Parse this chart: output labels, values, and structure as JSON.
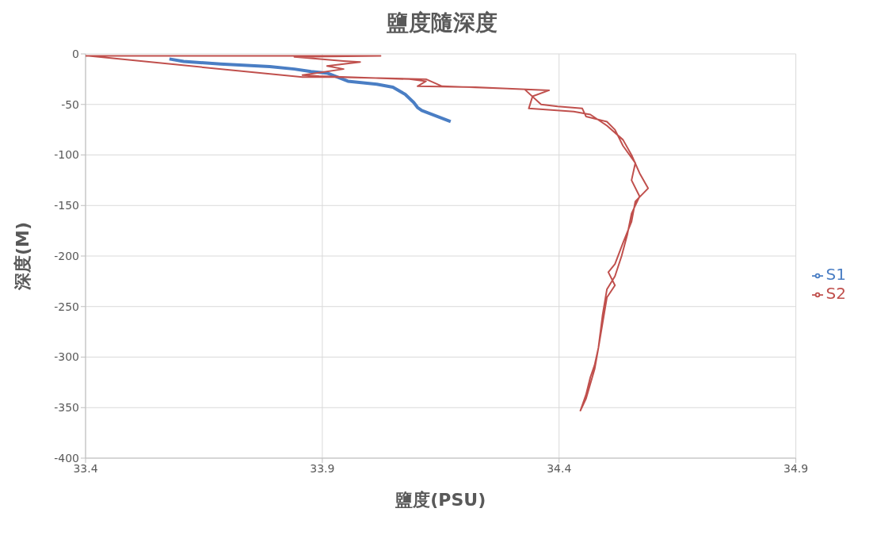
{
  "chart_data": {
    "type": "line",
    "title": "鹽度隨深度",
    "xlabel": "鹽度(PSU)",
    "ylabel": "深度(M)",
    "xlim": [
      33.4,
      34.9
    ],
    "xticks": [
      33.4,
      33.9,
      34.4,
      34.9
    ],
    "ylim": [
      -400,
      0
    ],
    "yticks": [
      -400,
      -350,
      -300,
      -250,
      -200,
      -150,
      -100,
      -50,
      0
    ],
    "grid": true,
    "legend": "right",
    "marker": "none",
    "line_style": "solid",
    "series": [
      {
        "name": "S1",
        "color": "#4a7ec4",
        "x": [
          33.577,
          33.607,
          33.685,
          33.789,
          33.841,
          33.876,
          33.91,
          33.954,
          34.015,
          34.049,
          34.075,
          34.093,
          34.101,
          34.11,
          34.171
        ],
        "values": [
          -5,
          -7.5,
          -10,
          -12.5,
          -15,
          -17.5,
          -19,
          -27,
          -30,
          -33,
          -40,
          -48,
          -53,
          -56,
          -67
        ]
      },
      {
        "name": "S2",
        "color": "#c0504d",
        "x": [
          33.4,
          34.023,
          33.841,
          33.945,
          33.98,
          33.91,
          33.945,
          33.858,
          33.893,
          34.084,
          34.119,
          34.101,
          34.223,
          34.379,
          34.344,
          34.336,
          34.431,
          34.466,
          34.501,
          34.535,
          34.553,
          34.57,
          34.588,
          34.561,
          34.553,
          34.535,
          34.518,
          34.504,
          34.518,
          34.501,
          34.492,
          34.483,
          34.475,
          34.466,
          34.457,
          34.445,
          34.457,
          34.475,
          34.483,
          34.492,
          34.501,
          34.518,
          34.532,
          34.544,
          34.553,
          34.57,
          34.553,
          34.561,
          34.535,
          34.518,
          34.501,
          34.457,
          34.449,
          34.397,
          34.362,
          34.327,
          34.153,
          34.119,
          33.928,
          33.858,
          33.407
        ],
        "values": [
          -2,
          -2,
          -3,
          -7,
          -8,
          -12,
          -15,
          -21,
          -22,
          -25,
          -27,
          -32,
          -33,
          -36,
          -42,
          -54,
          -57,
          -60,
          -71,
          -85,
          -100,
          -118,
          -133,
          -146,
          -166,
          -187,
          -208,
          -216,
          -229,
          -241,
          -266,
          -291,
          -308,
          -320,
          -337,
          -353,
          -341,
          -312,
          -291,
          -258,
          -233,
          -220,
          -200,
          -179,
          -158,
          -141,
          -125,
          -108,
          -91,
          -75,
          -67,
          -62,
          -54,
          -52,
          -50,
          -35,
          -32,
          -25,
          -23,
          -23,
          -2
        ]
      }
    ]
  }
}
